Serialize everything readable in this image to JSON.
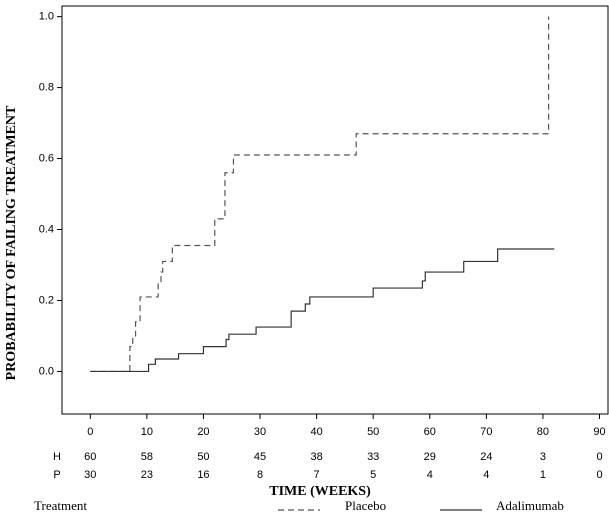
{
  "chart_data": {
    "type": "step",
    "xlabel": "TIME (WEEKS)",
    "ylabel": "PROBABILITY OF FAILING TREATMENT",
    "xlim": [
      -5,
      91.5
    ],
    "ylim": [
      -0.12,
      1.03
    ],
    "xticks": [
      0,
      10,
      20,
      30,
      40,
      50,
      60,
      70,
      80,
      90
    ],
    "yticks": [
      {
        "value": 0,
        "label": "0.0"
      },
      {
        "value": 0.2,
        "label": "0.2"
      },
      {
        "value": 0.4,
        "label": "0.4"
      },
      {
        "value": 0.6,
        "label": "0.6"
      },
      {
        "value": 0.8,
        "label": "0.8"
      },
      {
        "value": 1,
        "label": "1.0"
      }
    ],
    "legend_title": "Treatment",
    "series": [
      {
        "name": "Placebo",
        "color": "#555555",
        "dash": true,
        "x": [
          0,
          7,
          7.5,
          8,
          8.8,
          12,
          12.5,
          12.8,
          14.5,
          22,
          23.8,
          25.3,
          47,
          81
        ],
        "values": [
          0,
          0.07,
          0.1,
          0.14,
          0.21,
          0.25,
          0.28,
          0.31,
          0.355,
          0.43,
          0.56,
          0.61,
          0.67,
          1.0
        ]
      },
      {
        "name": "Adalimumab",
        "color": "#333333",
        "dash": false,
        "x": [
          0,
          10.3,
          11.5,
          15.6,
          20,
          24,
          24.5,
          29.3,
          35.5,
          38,
          38.8,
          50,
          58.7,
          59.2,
          66,
          72,
          82
        ],
        "values": [
          0,
          0.02,
          0.035,
          0.05,
          0.07,
          0.09,
          0.105,
          0.125,
          0.17,
          0.19,
          0.21,
          0.235,
          0.255,
          0.28,
          0.31,
          0.345,
          0.345
        ]
      }
    ],
    "at_risk": [
      {
        "label": "H",
        "counts": [
          60,
          58,
          50,
          45,
          38,
          33,
          29,
          24,
          3,
          0
        ]
      },
      {
        "label": "P",
        "counts": [
          30,
          23,
          16,
          8,
          7,
          5,
          4,
          4,
          1,
          0
        ]
      }
    ]
  }
}
